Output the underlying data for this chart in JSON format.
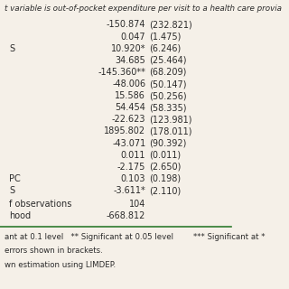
{
  "title_line": "t variable is out-of-pocket expenditure per visit to a health care provia",
  "rows": [
    {
      "coef": "-150.874",
      "se": "(232.821)",
      "left": ""
    },
    {
      "coef": "0.047",
      "se": "(1.475)",
      "left": ""
    },
    {
      "coef": "10.920*",
      "se": "(6.246)",
      "left": "S"
    },
    {
      "coef": "34.685",
      "se": "(25.464)",
      "left": ""
    },
    {
      "coef": "-145.360**",
      "se": "(68.209)",
      "left": ""
    },
    {
      "coef": "-48.006",
      "se": "(50.147)",
      "left": ""
    },
    {
      "coef": "15.586",
      "se": "(50.256)",
      "left": ""
    },
    {
      "coef": "54.454",
      "se": "(58.335)",
      "left": ""
    },
    {
      "coef": "-22.623",
      "se": "(123.981)",
      "left": ""
    },
    {
      "coef": "1895.802",
      "se": "(178.011)",
      "left": ""
    },
    {
      "coef": "-43.071",
      "se": "(90.392)",
      "left": ""
    },
    {
      "coef": "0.011",
      "se": "(0.011)",
      "left": ""
    },
    {
      "coef": "-2.175",
      "se": "(2.650)",
      "left": ""
    },
    {
      "coef": "0.103",
      "se": "(0.198)",
      "left": "PC"
    },
    {
      "coef": "-3.611*",
      "se": "(2.110)",
      "left": "S"
    }
  ],
  "summary_rows": [
    {
      "label": "f observations",
      "value": "104"
    },
    {
      "label": "hood",
      "value": "-668.812"
    }
  ],
  "footnotes": [
    "ant at 0.1 level   ** Significant at 0.05 level        *** Significant at *",
    "errors shown in brackets.",
    "wn estimation using LIMDEP."
  ],
  "bg_color": "#f5f0e8",
  "text_color": "#2b2b2b",
  "line_color": "#2d7a2d",
  "font_size": 7.0,
  "title_font_size": 6.3
}
